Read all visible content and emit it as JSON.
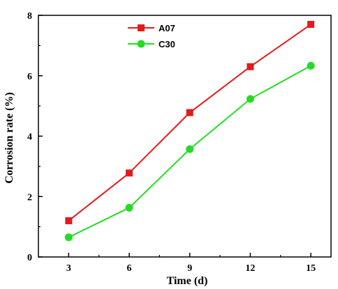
{
  "chart_data": {
    "type": "line",
    "title": "",
    "xlabel": "Time (d)",
    "ylabel": "Corrosion rate (%)",
    "x": [
      3,
      6,
      9,
      12,
      15
    ],
    "xticks": [
      "3",
      "6",
      "9",
      "12",
      "15"
    ],
    "yticks": [
      "0",
      "2",
      "4",
      "6",
      "8"
    ],
    "ylim": [
      0,
      8
    ],
    "grid": false,
    "legend_position": "top-center",
    "series": [
      {
        "name": "A07",
        "color": "#e31a1c",
        "marker": "square",
        "values": [
          1.2,
          2.78,
          4.78,
          6.3,
          7.7
        ]
      },
      {
        "name": "C30",
        "color": "#22dd22",
        "marker": "circle",
        "values": [
          0.65,
          1.63,
          3.57,
          5.23,
          6.33
        ]
      }
    ]
  }
}
